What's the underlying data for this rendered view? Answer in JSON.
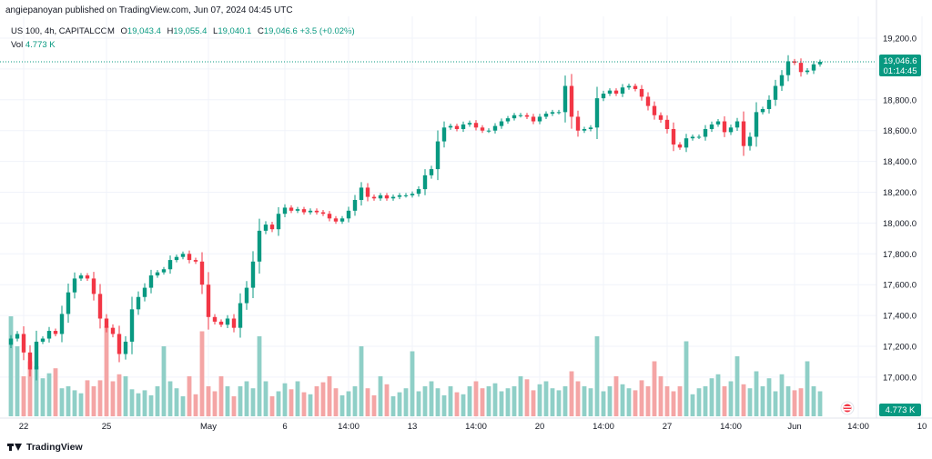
{
  "header": {
    "published": "angiepanoyan published on TradingView.com, Jun 07, 2024 04:45 UTC"
  },
  "legend": {
    "symbol": "US 100, 4h, CAPITALCOM",
    "o_label": "O",
    "o_value": "19,043.4",
    "h_label": "H",
    "h_value": "19,055.4",
    "l_label": "L",
    "l_value": "19,040.1",
    "c_label": "C",
    "c_value": "19,046.6",
    "change": "+3.5 (+0.02%)",
    "vol_label": "Vol",
    "vol_value": "4.773 K"
  },
  "footer": {
    "brand": "TradingView"
  },
  "colors": {
    "up": "#089981",
    "down": "#f23645",
    "up_vol": "#8fcfc7",
    "down_vol": "#f4a5a5",
    "grid": "#f0f3fa",
    "axis_text": "#131722",
    "price_line": "#089981"
  },
  "chart_data": {
    "type": "candlestick",
    "title": "US 100, 4h, CAPITALCOM",
    "ylim": [
      16800,
      19300
    ],
    "y_ticks": [
      "19,200.0",
      "19,000.0",
      "18,800.0",
      "18,600.0",
      "18,400.0",
      "18,200.0",
      "18,000.0",
      "17,800.0",
      "17,600.0",
      "17,400.0",
      "17,200.0",
      "17,000.0"
    ],
    "y_tick_values": [
      19200,
      19000,
      18800,
      18600,
      18400,
      18200,
      18000,
      17800,
      17600,
      17400,
      17200,
      17000
    ],
    "x_ticks": [
      {
        "label": "22",
        "bar": 2
      },
      {
        "label": "25",
        "bar": 15
      },
      {
        "label": "May",
        "bar": 31
      },
      {
        "label": "6",
        "bar": 43
      },
      {
        "label": "14:00",
        "bar": 53
      },
      {
        "label": "13",
        "bar": 63
      },
      {
        "label": "14:00",
        "bar": 73
      },
      {
        "label": "20",
        "bar": 83
      },
      {
        "label": "14:00",
        "bar": 93
      },
      {
        "label": "27",
        "bar": 103
      },
      {
        "label": "14:00",
        "bar": 113
      },
      {
        "label": "Jun",
        "bar": 123
      },
      {
        "label": "14:00",
        "bar": 133
      },
      {
        "label": "10",
        "bar": 143
      }
    ],
    "last_price": "19,046.6",
    "countdown": "01:14:45",
    "volume_label": "4.773 K",
    "close_anchor": 17250,
    "closes": [
      17250,
      17280,
      17160,
      17050,
      17230,
      17250,
      17300,
      17280,
      17410,
      17550,
      17640,
      17660,
      17640,
      17540,
      17380,
      17320,
      17280,
      17150,
      17230,
      17440,
      17520,
      17580,
      17660,
      17680,
      17700,
      17760,
      17780,
      17800,
      17760,
      17750,
      17600,
      17390,
      17360,
      17340,
      17380,
      17320,
      17480,
      17580,
      17750,
      17950,
      17990,
      17960,
      18060,
      18100,
      18080,
      18090,
      18070,
      18080,
      18070,
      18060,
      18030,
      18010,
      18030,
      18080,
      18150,
      18230,
      18170,
      18160,
      18180,
      18160,
      18170,
      18180,
      18180,
      18190,
      18220,
      18310,
      18350,
      18530,
      18620,
      18630,
      18610,
      18640,
      18650,
      18620,
      18600,
      18600,
      18630,
      18660,
      18680,
      18700,
      18700,
      18690,
      18660,
      18690,
      18710,
      18720,
      18720,
      18890,
      18690,
      18600,
      18610,
      18620,
      18810,
      18840,
      18860,
      18840,
      18880,
      18890,
      18870,
      18820,
      18760,
      18700,
      18670,
      18610,
      18510,
      18490,
      18550,
      18560,
      18560,
      18610,
      18640,
      18660,
      18590,
      18620,
      18660,
      18500,
      18560,
      18720,
      18740,
      18800,
      18890,
      18960,
      19050,
      19040,
      18980,
      18990,
      19030,
      19046.6
    ],
    "volumes": [
      1.0,
      0.7,
      0.4,
      0.55,
      0.5,
      0.38,
      0.43,
      0.48,
      0.28,
      0.3,
      0.26,
      0.23,
      0.36,
      0.3,
      0.36,
      0.9,
      0.35,
      0.42,
      0.4,
      0.27,
      0.23,
      0.26,
      0.21,
      0.3,
      0.7,
      0.35,
      0.28,
      0.2,
      0.4,
      0.22,
      0.85,
      0.3,
      0.25,
      0.4,
      0.3,
      0.2,
      0.3,
      0.35,
      0.28,
      0.8,
      0.35,
      0.2,
      0.25,
      0.33,
      0.27,
      0.35,
      0.24,
      0.22,
      0.3,
      0.34,
      0.4,
      0.28,
      0.21,
      0.25,
      0.3,
      0.7,
      0.28,
      0.21,
      0.4,
      0.32,
      0.2,
      0.24,
      0.28,
      0.65,
      0.25,
      0.3,
      0.35,
      0.28,
      0.21,
      0.3,
      0.24,
      0.22,
      0.3,
      0.35,
      0.28,
      0.3,
      0.33,
      0.25,
      0.28,
      0.3,
      0.4,
      0.37,
      0.26,
      0.32,
      0.35,
      0.28,
      0.26,
      0.3,
      0.45,
      0.35,
      0.3,
      0.28,
      0.8,
      0.25,
      0.3,
      0.4,
      0.32,
      0.28,
      0.26,
      0.36,
      0.3,
      0.55,
      0.4,
      0.3,
      0.25,
      0.3,
      0.75,
      0.22,
      0.28,
      0.3,
      0.38,
      0.42,
      0.3,
      0.35,
      0.6,
      0.32,
      0.28,
      0.45,
      0.3,
      0.38,
      0.25,
      0.42,
      0.3,
      0.26,
      0.28,
      0.55,
      0.3,
      0.25
    ]
  }
}
